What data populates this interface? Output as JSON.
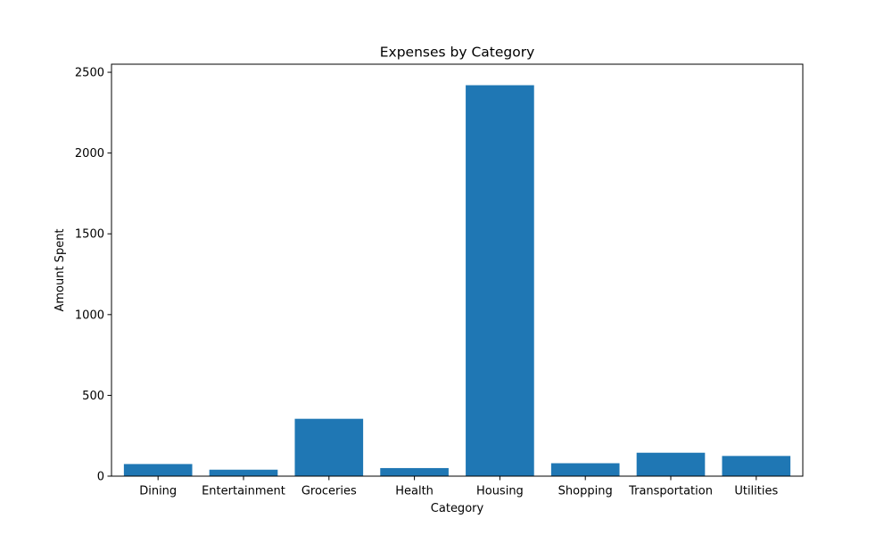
{
  "chart_data": {
    "type": "bar",
    "title": "Expenses by Category",
    "xlabel": "Category",
    "ylabel": "Amount Spent",
    "categories": [
      "Dining",
      "Entertainment",
      "Groceries",
      "Health",
      "Housing",
      "Shopping",
      "Transportation",
      "Utilities"
    ],
    "values": [
      75,
      40,
      355,
      50,
      2420,
      80,
      145,
      125
    ],
    "ylim": [
      0,
      2550
    ],
    "yticks": [
      0,
      500,
      1000,
      1500,
      2000,
      2500
    ],
    "grid": false,
    "bar_color": "#1f77b4"
  }
}
